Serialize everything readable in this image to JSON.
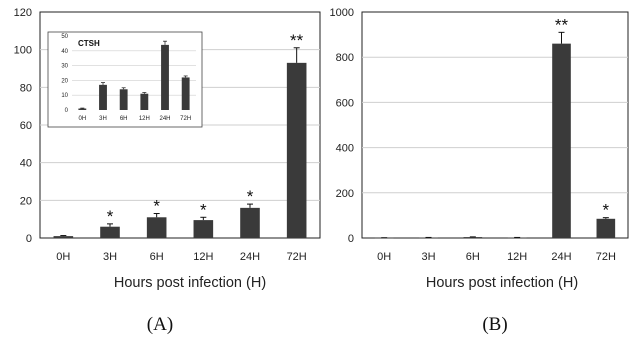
{
  "chart_data": [
    {
      "type": "bar",
      "panel_label": "(A)",
      "xlabel": "Hours post infection (H)",
      "categories": [
        "0H",
        "3H",
        "6H",
        "12H",
        "24H",
        "72H"
      ],
      "values": [
        1,
        6,
        11,
        9.5,
        16,
        93
      ],
      "errors": [
        0.3,
        1.5,
        2,
        1.5,
        2,
        8
      ],
      "significance": [
        "",
        "*",
        "*",
        "*",
        "*",
        "**"
      ],
      "ylim": [
        0,
        120
      ],
      "yticks": [
        0,
        20,
        40,
        60,
        80,
        100,
        120
      ],
      "grid": true,
      "bar_color": "#3a3a3a",
      "inset": {
        "type": "bar",
        "title": "CTSH",
        "categories": [
          "0H",
          "3H",
          "6H",
          "12H",
          "24H",
          "72H"
        ],
        "values": [
          1,
          17,
          14,
          11,
          44,
          22
        ],
        "errors": [
          0.3,
          1.5,
          1,
          0.8,
          2.5,
          1
        ],
        "ylim": [
          0,
          50
        ],
        "yticks": [
          0,
          10,
          20,
          30,
          40,
          50
        ],
        "grid": true
      }
    },
    {
      "type": "bar",
      "panel_label": "(B)",
      "xlabel": "Hours post infection (H)",
      "categories": [
        "0H",
        "3H",
        "6H",
        "12H",
        "24H",
        "72H"
      ],
      "values": [
        1,
        2,
        4,
        2,
        860,
        85
      ],
      "errors": [
        0.3,
        0.5,
        1,
        0.5,
        50,
        5
      ],
      "significance": [
        "",
        "",
        "",
        "",
        "**",
        "*"
      ],
      "ylim": [
        0,
        1000
      ],
      "yticks": [
        0,
        200,
        400,
        600,
        800,
        1000
      ],
      "grid": true,
      "bar_color": "#3a3a3a"
    }
  ]
}
